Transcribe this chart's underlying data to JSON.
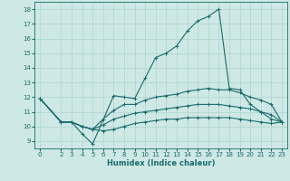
{
  "xlabel": "Humidex (Indice chaleur)",
  "xlim": [
    -0.5,
    23.5
  ],
  "ylim": [
    8.5,
    18.5
  ],
  "yticks": [
    9,
    10,
    11,
    12,
    13,
    14,
    15,
    16,
    17,
    18
  ],
  "xticks": [
    0,
    2,
    3,
    4,
    5,
    6,
    7,
    8,
    9,
    10,
    11,
    12,
    13,
    14,
    15,
    16,
    17,
    18,
    19,
    20,
    21,
    22,
    23
  ],
  "bg_color": "#cde8e5",
  "line_color": "#1a6b6b",
  "grid_color": "#b0d4d0",
  "lines": [
    {
      "x": [
        0,
        2,
        3,
        4,
        5,
        7,
        8,
        9,
        10,
        11,
        12,
        13,
        14,
        15,
        16,
        17,
        18,
        19,
        20,
        21,
        22,
        23
      ],
      "y": [
        11.9,
        10.3,
        10.3,
        9.5,
        8.8,
        12.1,
        12.0,
        11.9,
        13.3,
        14.7,
        15.0,
        15.5,
        16.5,
        17.2,
        17.5,
        18.0,
        12.6,
        12.5,
        11.5,
        11.0,
        10.5,
        10.3
      ]
    },
    {
      "x": [
        0,
        2,
        3,
        4,
        5,
        6,
        7,
        8,
        9,
        10,
        11,
        12,
        13,
        14,
        15,
        16,
        17,
        18,
        19,
        20,
        21,
        22,
        23
      ],
      "y": [
        11.9,
        10.3,
        10.3,
        10.0,
        9.8,
        10.5,
        11.1,
        11.5,
        11.5,
        11.8,
        12.0,
        12.1,
        12.2,
        12.4,
        12.5,
        12.6,
        12.5,
        12.5,
        12.3,
        12.0,
        11.8,
        11.5,
        10.3
      ]
    },
    {
      "x": [
        0,
        2,
        3,
        4,
        5,
        6,
        7,
        8,
        9,
        10,
        11,
        12,
        13,
        14,
        15,
        16,
        17,
        18,
        19,
        20,
        21,
        22,
        23
      ],
      "y": [
        11.9,
        10.3,
        10.3,
        10.0,
        9.8,
        10.1,
        10.5,
        10.7,
        10.9,
        11.0,
        11.1,
        11.2,
        11.3,
        11.4,
        11.5,
        11.5,
        11.5,
        11.4,
        11.3,
        11.2,
        11.0,
        10.8,
        10.3
      ]
    },
    {
      "x": [
        0,
        2,
        3,
        4,
        5,
        6,
        7,
        8,
        9,
        10,
        11,
        12,
        13,
        14,
        15,
        16,
        17,
        18,
        19,
        20,
        21,
        22,
        23
      ],
      "y": [
        11.9,
        10.3,
        10.3,
        10.0,
        9.8,
        9.7,
        9.8,
        10.0,
        10.2,
        10.3,
        10.4,
        10.5,
        10.5,
        10.6,
        10.6,
        10.6,
        10.6,
        10.6,
        10.5,
        10.4,
        10.3,
        10.2,
        10.3
      ]
    }
  ],
  "xlabel_fontsize": 6,
  "tick_fontsize": 5,
  "linewidth": 0.8,
  "markersize": 2.5
}
